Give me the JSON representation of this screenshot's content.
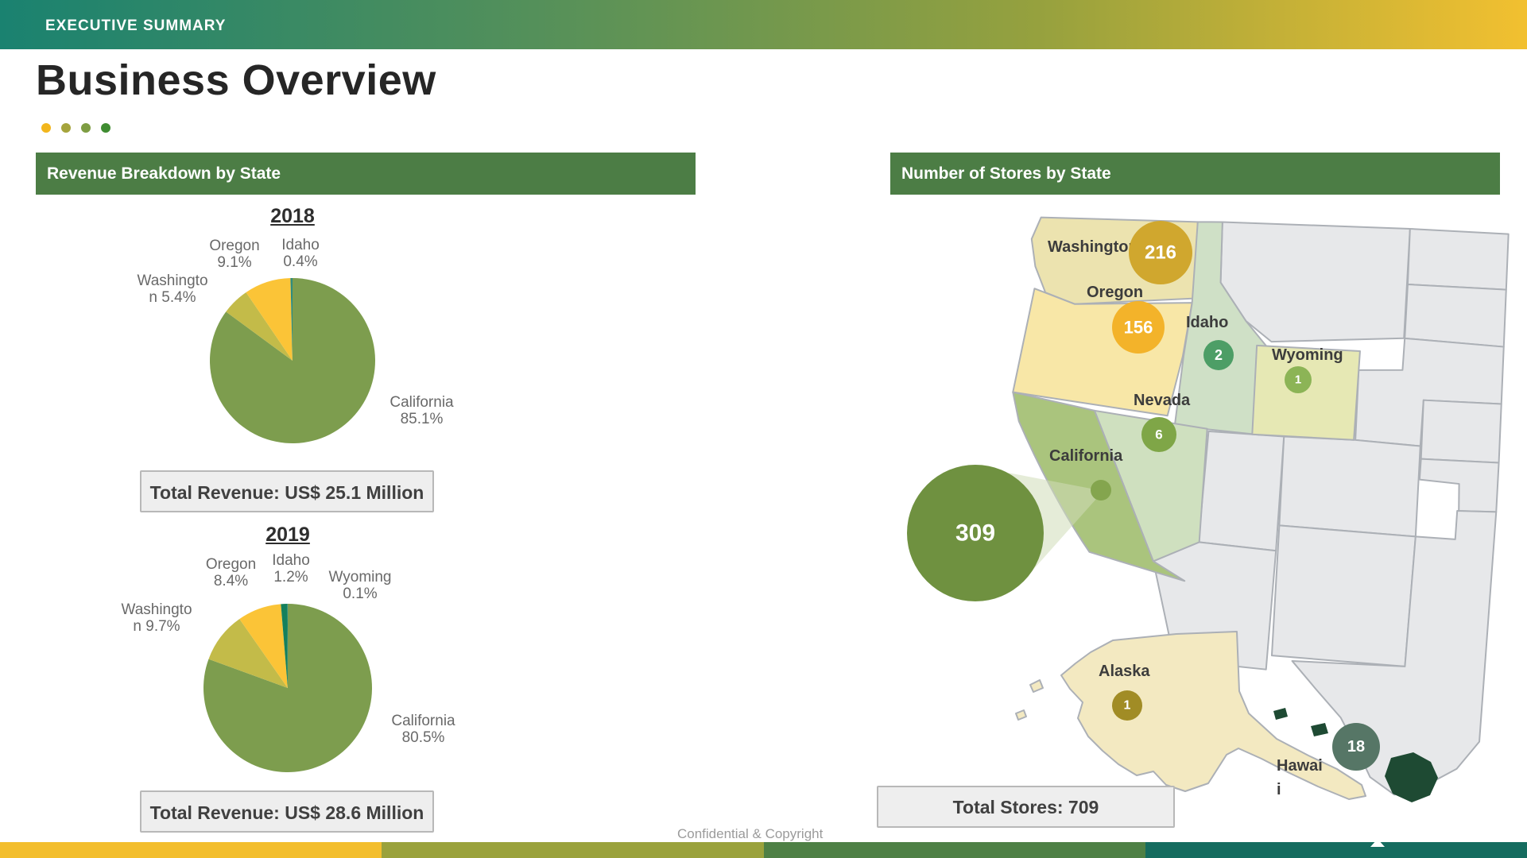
{
  "theme": {
    "top_gradient": [
      "#1a8270",
      "#54905a",
      "#96a13e",
      "#f2c030"
    ],
    "bottom_bar_segments": [
      "#f3be2d",
      "#9aa23c",
      "#4e8045",
      "#156c5f"
    ],
    "header_green": "#4c7d45",
    "accent_dots": [
      "#f2b61d",
      "#a5a43c",
      "#7e9d43",
      "#3f8c31"
    ],
    "map_gray": "#e7e8ea"
  },
  "slide": {
    "eyebrow": "EXECUTIVE SUMMARY",
    "title": "Business Overview",
    "footer": "Confidential & Copyright"
  },
  "left_panel": {
    "header": "Revenue Breakdown by State"
  },
  "right_panel": {
    "header": "Number of Stores by State",
    "map_labels": {
      "washington": "Washington",
      "oregon": "Oregon",
      "idaho": "Idaho",
      "wyoming": "Wyoming",
      "nevada": "Nevada",
      "california": "California",
      "alaska": "Alaska",
      "hawaii_line1": "Hawai",
      "hawaii_line2": "i"
    }
  },
  "chart_data": [
    {
      "type": "pie",
      "title": "2018",
      "categories": [
        "California",
        "Washington",
        "Oregon",
        "Idaho"
      ],
      "values": [
        85.1,
        5.4,
        9.1,
        0.4
      ],
      "colors": [
        "#7d9d4e",
        "#c3bb49",
        "#fbc437",
        "#2f8c7e"
      ],
      "data_labels": {
        "oregon": [
          "Oregon",
          "9.1%"
        ],
        "idaho": [
          "Idaho",
          "0.4%"
        ],
        "washington": [
          "Washingto",
          "n 5.4%"
        ],
        "california": [
          "California",
          "85.1%"
        ]
      },
      "total_label": "Total Revenue: US$ 25.1 Million"
    },
    {
      "type": "pie",
      "title": "2019",
      "categories": [
        "California",
        "Washington",
        "Oregon",
        "Idaho",
        "Wyoming"
      ],
      "values": [
        80.5,
        9.7,
        8.4,
        1.2,
        0.1
      ],
      "colors": [
        "#7d9d4e",
        "#c3bb49",
        "#fbc437",
        "#14805c",
        "#2f8c7e"
      ],
      "data_labels": {
        "oregon": [
          "Oregon",
          "8.4%"
        ],
        "idaho": [
          "Idaho",
          "1.2%"
        ],
        "wyoming": [
          "Wyoming",
          "0.1%"
        ],
        "washington": [
          "Washingto",
          "n 9.7%"
        ],
        "california": [
          "California",
          "80.5%"
        ]
      },
      "total_label": "Total Revenue: US$ 28.6 Million"
    },
    {
      "type": "map",
      "title": "Number of Stores by State",
      "series": [
        {
          "state": "Washington",
          "stores": 216
        },
        {
          "state": "Oregon",
          "stores": 156
        },
        {
          "state": "Idaho",
          "stores": 2
        },
        {
          "state": "Wyoming",
          "stores": 1
        },
        {
          "state": "Nevada",
          "stores": 6
        },
        {
          "state": "California",
          "stores": 309
        },
        {
          "state": "Alaska",
          "stores": 1
        },
        {
          "state": "Hawaii",
          "stores": 18
        }
      ],
      "state_fills": {
        "washington": "#ece3af",
        "oregon": "#f8e7a7",
        "idaho": "#cfe0c6",
        "wyoming": "#e6e8b4",
        "nevada": "#cfe0bf",
        "california": "#aac47d",
        "alaska": "#f3e9c1",
        "hawaii": "#1e4a33"
      },
      "bubble_colors": {
        "washington": "#d0a72e",
        "oregon": "#f3b32a",
        "idaho": "#4d9e66",
        "wyoming": "#8cb456",
        "nevada": "#7fa647",
        "california": "#6f9140",
        "california_dot": "#84a54e",
        "alaska": "#a18c25",
        "hawaii": "#567666"
      },
      "total_label": "Total Stores: 709"
    }
  ]
}
